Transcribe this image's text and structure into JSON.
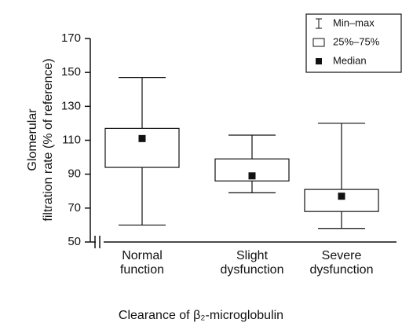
{
  "chart_data": {
    "type": "box",
    "y_label": [
      "Glomerular",
      "filtration rate (% of reference)"
    ],
    "x_label": "Clearance of β₂-microglobulin",
    "categories": [
      [
        "Normal",
        "function"
      ],
      [
        "Slight",
        "dysfunction"
      ],
      [
        "Severe",
        "dysfunction"
      ]
    ],
    "boxes": [
      {
        "min": 60,
        "q1": 94,
        "median": 111,
        "q3": 117,
        "max": 147
      },
      {
        "min": 79,
        "q1": 86,
        "median": 89,
        "q3": 99,
        "max": 113
      },
      {
        "min": 58,
        "q1": 68,
        "median": 77,
        "q3": 81,
        "max": 120
      }
    ],
    "legend": [
      "Min–max",
      "25%–75%",
      "Median"
    ],
    "legend_position": "upper right",
    "ylim": [
      50,
      170
    ],
    "yticks": [
      50,
      70,
      90,
      110,
      130,
      150,
      170
    ]
  }
}
